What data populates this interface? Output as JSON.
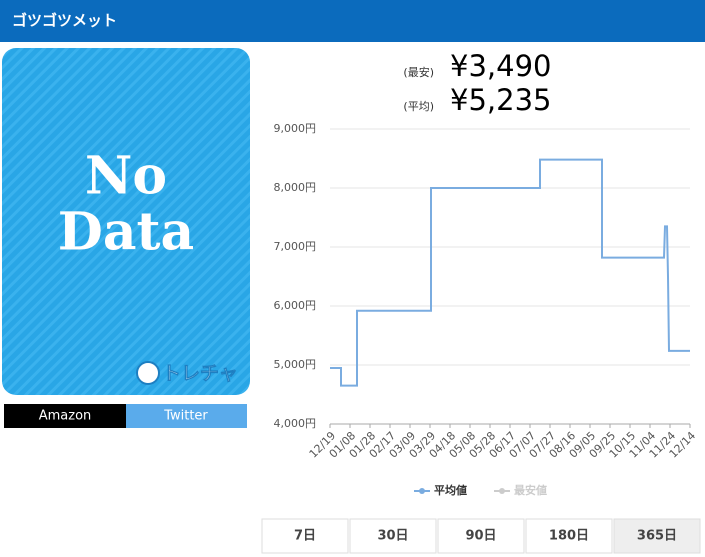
{
  "header": {
    "title": "ゴツゴツメット"
  },
  "image": {
    "lines": [
      "No",
      "Data"
    ],
    "logo": "トレチャ"
  },
  "links": [
    "Amazon",
    "Twitter"
  ],
  "prices": [
    {
      "label": "(最安)",
      "value": "¥3,490"
    },
    {
      "label": "(平均)",
      "value": "¥5,235"
    }
  ],
  "chart_data": {
    "type": "line",
    "x": [
      "12/19",
      "12/30",
      "12/30",
      "01/15",
      "01/15",
      "03/30",
      "03/30",
      "07/17",
      "07/17",
      "09/17",
      "09/17",
      "11/18",
      "11/19",
      "11/21",
      "11/22",
      "11/23",
      "12/14"
    ],
    "series": [
      {
        "name": "平均値",
        "color": "#7aace0",
        "values": [
          4950,
          4950,
          4650,
          4650,
          5920,
          5920,
          8000,
          8000,
          8480,
          8480,
          6820,
          6820,
          7350,
          7350,
          6500,
          5240,
          5240
        ]
      },
      {
        "name": "最安値",
        "color": "#cccccc",
        "visible": false
      }
    ],
    "xticks": [
      "12/19",
      "01/08",
      "01/28",
      "02/17",
      "03/09",
      "03/29",
      "04/18",
      "05/08",
      "05/28",
      "06/17",
      "07/07",
      "07/27",
      "08/16",
      "09/05",
      "09/25",
      "10/15",
      "11/04",
      "11/24",
      "12/14"
    ],
    "ylim": [
      4000,
      9000
    ],
    "yticks": [
      {
        "value": 4000,
        "label": "4,000円"
      },
      {
        "value": 5000,
        "label": "5,000円"
      },
      {
        "value": 6000,
        "label": "6,000円"
      },
      {
        "value": 7000,
        "label": "7,000円"
      },
      {
        "value": 8000,
        "label": "8,000円"
      },
      {
        "value": 9000,
        "label": "9,000円"
      }
    ],
    "grid": true
  },
  "ranges": {
    "options": [
      "7日",
      "30日",
      "90日",
      "180日",
      "365日"
    ],
    "selected": 4
  }
}
